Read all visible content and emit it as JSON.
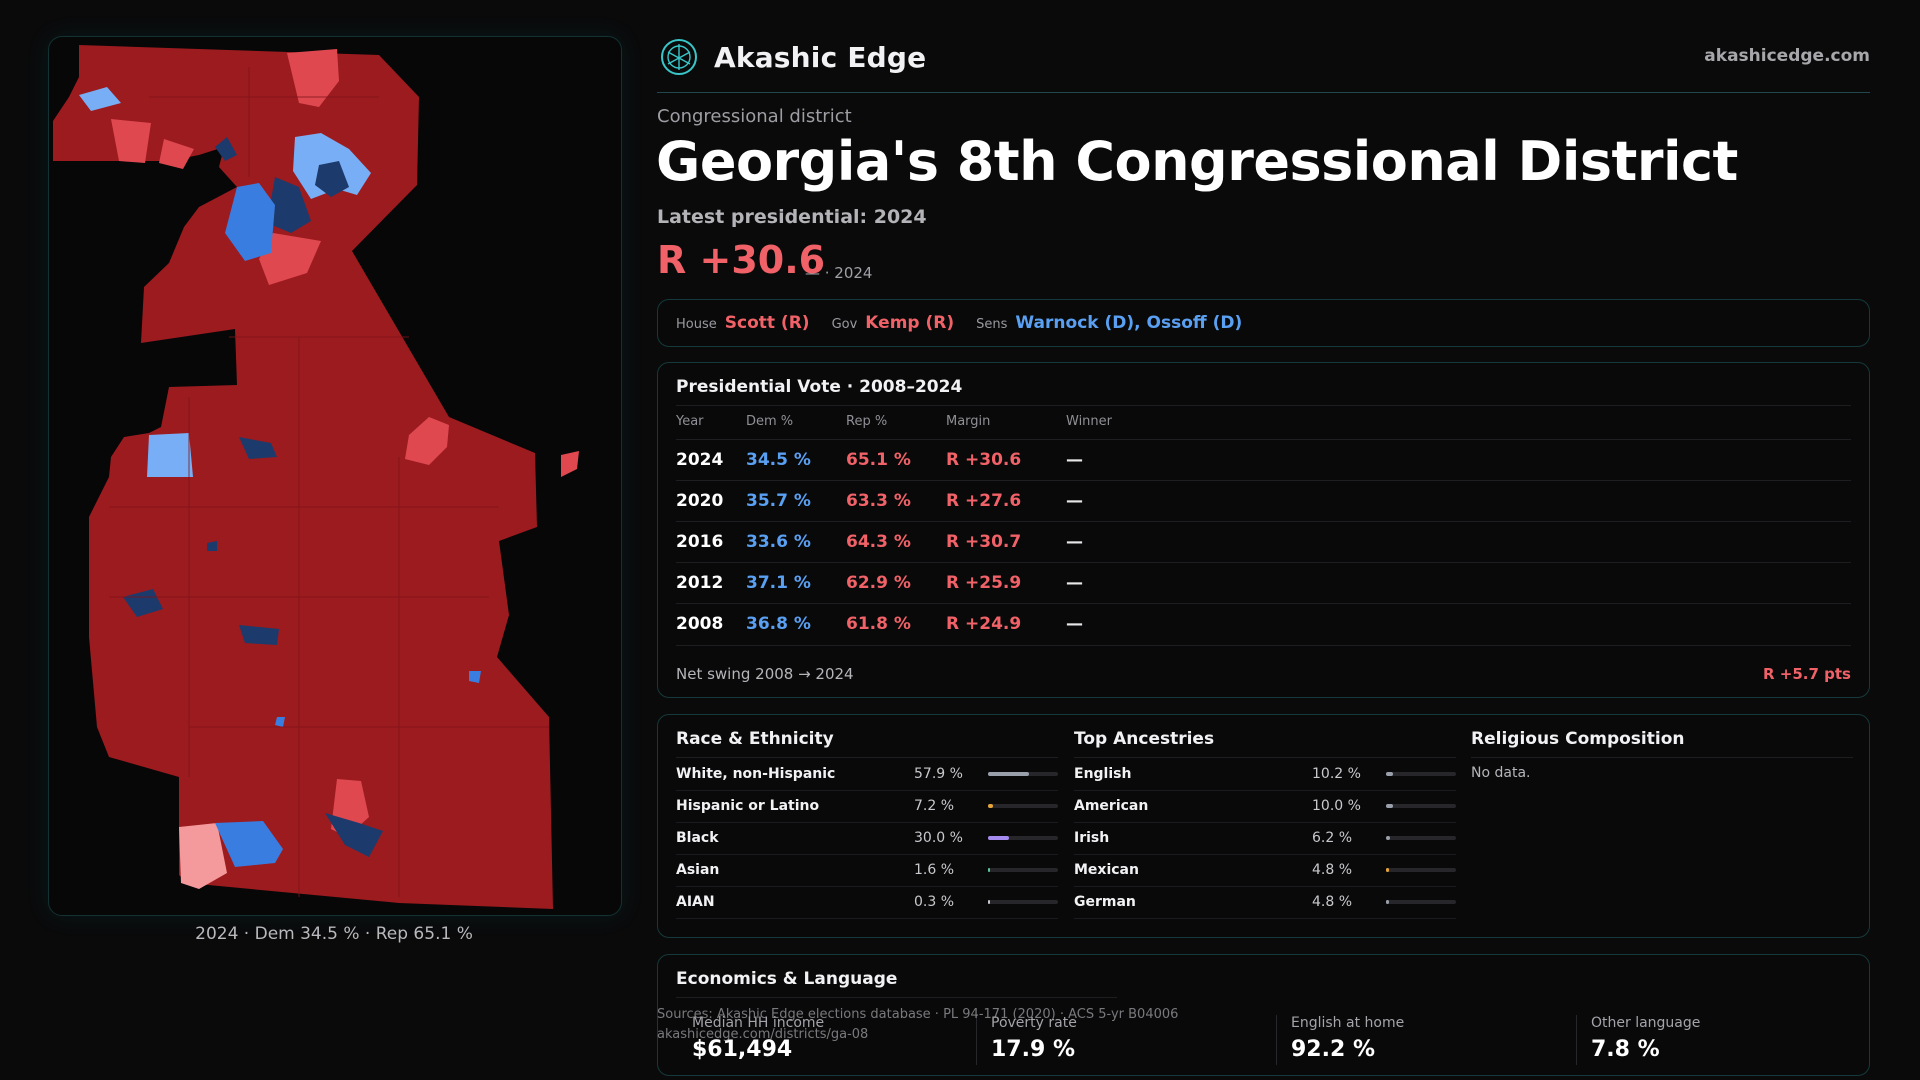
{
  "brand": {
    "name": "Akashic Edge",
    "logo_icon": "akashic-edge-logo-icon",
    "url": "akashicedge.com"
  },
  "district": {
    "kicker": "Congressional district",
    "title": "Georgia's 8th Congressional District",
    "latest_label": "Latest presidential: 2024",
    "latest_margin": "R +30.6",
    "latest_sub": "— · 2024"
  },
  "officials": [
    {
      "label": "House",
      "value": "Scott (R)",
      "party": "R"
    },
    {
      "label": "Gov",
      "value": "Kemp (R)",
      "party": "R"
    },
    {
      "label": "Sens",
      "value": "Warnock (D), Ossoff (D)",
      "party": "D"
    }
  ],
  "presidential": {
    "title": "Presidential Vote · 2008–2024",
    "columns": [
      "Year",
      "Dem %",
      "Rep %",
      "Margin",
      "Winner"
    ],
    "rows": [
      {
        "year": "2024",
        "dem": "34.5 %",
        "rep": "65.1 %",
        "margin": "R +30.6",
        "winner": "—"
      },
      {
        "year": "2020",
        "dem": "35.7 %",
        "rep": "63.3 %",
        "margin": "R +27.6",
        "winner": "—"
      },
      {
        "year": "2016",
        "dem": "33.6 %",
        "rep": "64.3 %",
        "margin": "R +30.7",
        "winner": "—"
      },
      {
        "year": "2012",
        "dem": "37.1 %",
        "rep": "62.9 %",
        "margin": "R +25.9",
        "winner": "—"
      },
      {
        "year": "2008",
        "dem": "36.8 %",
        "rep": "61.8 %",
        "margin": "R +24.9",
        "winner": "—"
      }
    ],
    "swing_label": "Net swing 2008 → 2024",
    "swing_value": "R +5.7 pts"
  },
  "race": {
    "title": "Race & Ethnicity",
    "rows": [
      {
        "label": "White, non-Hispanic",
        "value": "57.9 %",
        "pct": 57.9,
        "color": "#9aa0ab"
      },
      {
        "label": "Hispanic or Latino",
        "value": "7.2 %",
        "pct": 7.2,
        "color": "#e7a33a"
      },
      {
        "label": "Black",
        "value": "30.0 %",
        "pct": 30.0,
        "color": "#a58bf0"
      },
      {
        "label": "Asian",
        "value": "1.6 %",
        "pct": 1.6,
        "color": "#58c7a0"
      },
      {
        "label": "AIAN",
        "value": "0.3 %",
        "pct": 0.3,
        "color": "#c9c9cd"
      }
    ]
  },
  "ancestry": {
    "title": "Top Ancestries",
    "rows": [
      {
        "label": "English",
        "value": "10.2 %",
        "pct": 10.2,
        "color": "#9aa0ab"
      },
      {
        "label": "American",
        "value": "10.0 %",
        "pct": 10.0,
        "color": "#9aa0ab"
      },
      {
        "label": "Irish",
        "value": "6.2 %",
        "pct": 6.2,
        "color": "#9aa0ab"
      },
      {
        "label": "Mexican",
        "value": "4.8 %",
        "pct": 4.8,
        "color": "#e7a33a"
      },
      {
        "label": "German",
        "value": "4.8 %",
        "pct": 4.8,
        "color": "#9aa0ab"
      }
    ]
  },
  "religion": {
    "title": "Religious Composition",
    "empty": "No data."
  },
  "economics": {
    "title": "Economics & Language",
    "items": [
      {
        "label": "Median HH income",
        "value": "$61,494"
      },
      {
        "label": "Poverty rate",
        "value": "17.9 %"
      },
      {
        "label": "English at home",
        "value": "92.2 %"
      },
      {
        "label": "Other language",
        "value": "7.8 %"
      }
    ]
  },
  "sources": {
    "line1": "Sources: Akashic Edge elections database · PL 94-171 (2020) · ACS 5-yr B04006",
    "line2": "akashicedge.com/districts/ga-08"
  },
  "map": {
    "caption": "2024 · Dem 34.5 % · Rep 65.1 %",
    "colors": {
      "safe_r": "#9c1b1f",
      "lean_r": "#e04850",
      "tilt_r": "#f59a9c",
      "safe_d": "#1c3a6b",
      "lean_d": "#3a7de0",
      "tilt_d": "#78aef5"
    }
  }
}
